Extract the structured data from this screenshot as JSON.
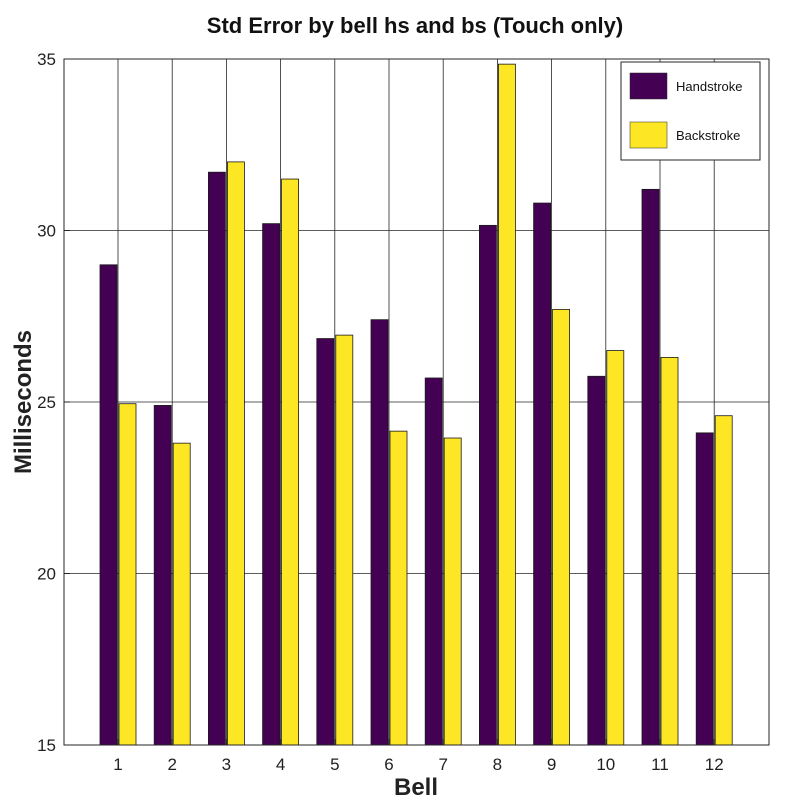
{
  "chart_data": {
    "type": "bar",
    "title": "Std Error by bell hs and bs (Touch only)",
    "xlabel": "Bell",
    "ylabel": "Milliseconds",
    "categories": [
      "1",
      "2",
      "3",
      "4",
      "5",
      "6",
      "7",
      "8",
      "9",
      "10",
      "11",
      "12"
    ],
    "series": [
      {
        "name": "Handstroke",
        "color": "#440154",
        "values": [
          29.0,
          24.9,
          31.7,
          30.2,
          26.85,
          27.4,
          25.7,
          30.15,
          30.8,
          25.75,
          31.2,
          24.1
        ]
      },
      {
        "name": "Backstroke",
        "color": "#fde725",
        "values": [
          24.95,
          23.8,
          32.0,
          31.5,
          26.95,
          24.15,
          23.95,
          34.85,
          27.7,
          26.5,
          26.3,
          24.6
        ]
      }
    ],
    "ylim": [
      15,
      35
    ],
    "yticks": [
      15,
      20,
      25,
      30,
      35
    ],
    "grid": true,
    "legend_position": "top-right"
  }
}
